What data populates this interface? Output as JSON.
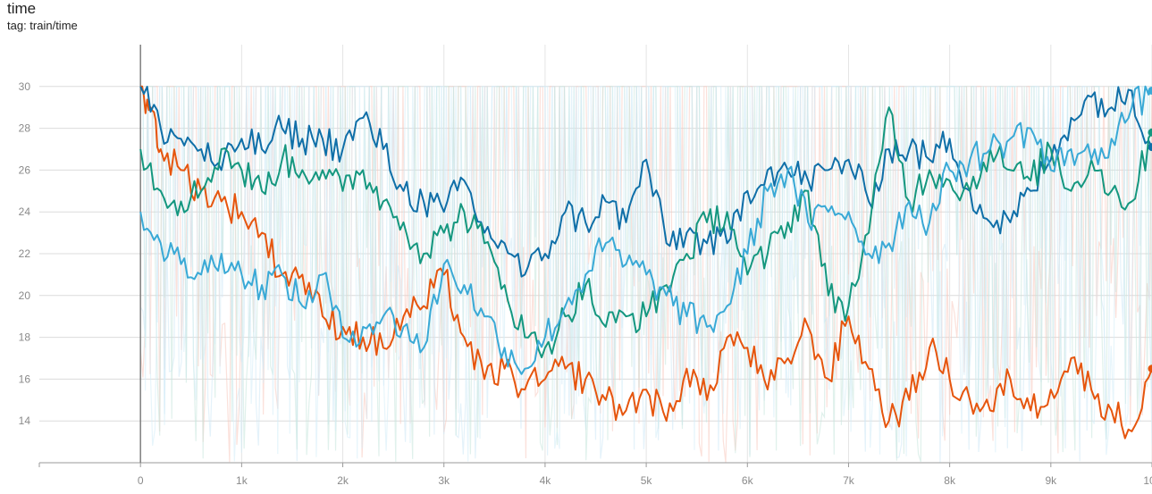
{
  "card": {
    "title": "time",
    "subtitle": "tag: train/time"
  },
  "chart_data": {
    "type": "line",
    "title": "time",
    "subtitle": "tag: train/time",
    "xlim": [
      -1000,
      10000
    ],
    "ylim": [
      12,
      32
    ],
    "x_ticks": [
      0,
      1000,
      2000,
      3000,
      4000,
      5000,
      6000,
      7000,
      8000,
      9000,
      10000
    ],
    "x_tick_labels": [
      "0",
      "1k",
      "2k",
      "3k",
      "4k",
      "5k",
      "6k",
      "7k",
      "8k",
      "9k",
      "10k"
    ],
    "y_ticks": [
      14,
      16,
      18,
      20,
      22,
      24,
      26,
      28,
      30
    ],
    "y_tick_labels": [
      "14",
      "16",
      "18",
      "20",
      "22",
      "24",
      "26",
      "28",
      "30"
    ],
    "grid": true,
    "raw_value_range": [
      12,
      30
    ],
    "series": [
      {
        "color": "#e6550d",
        "raw_color": "#f7c9bd",
        "end_marker": true,
        "x": [
          0,
          100,
          200,
          400,
          600,
          800,
          1000,
          1200,
          1400,
          1600,
          1800,
          2000,
          2200,
          2400,
          2600,
          2800,
          3000,
          3200,
          3400,
          3600,
          3800,
          4000,
          4200,
          4400,
          4600,
          4800,
          5000,
          5200,
          5400,
          5600,
          5800,
          6000,
          6200,
          6400,
          6600,
          6800,
          7000,
          7200,
          7400,
          7600,
          7800,
          8000,
          8200,
          8400,
          8600,
          8800,
          9000,
          9200,
          9400,
          9600,
          9800,
          10000
        ],
        "y": [
          30.0,
          29.0,
          27.0,
          26.0,
          25.0,
          24.5,
          24.0,
          23.0,
          21.0,
          21.0,
          19.0,
          18.5,
          18.0,
          17.5,
          19.0,
          19.5,
          21.0,
          18.0,
          16.0,
          16.5,
          15.5,
          16.0,
          16.5,
          16.0,
          15.0,
          14.5,
          15.5,
          14.0,
          16.5,
          15.0,
          18.0,
          17.5,
          15.5,
          17.0,
          18.5,
          16.0,
          19.0,
          16.5,
          14.0,
          15.0,
          17.5,
          16.0,
          15.0,
          14.5,
          16.0,
          14.5,
          15.5,
          17.0,
          15.5,
          14.5,
          13.5,
          16.5
        ]
      },
      {
        "color": "#0f6fa8",
        "raw_color": "#cde8f5",
        "end_marker": true,
        "x": [
          0,
          200,
          400,
          600,
          800,
          1000,
          1200,
          1400,
          1600,
          1800,
          2000,
          2200,
          2400,
          2600,
          2800,
          3000,
          3200,
          3400,
          3600,
          3800,
          4000,
          4200,
          4400,
          4600,
          4800,
          5000,
          5200,
          5400,
          5600,
          5800,
          6000,
          6200,
          6400,
          6600,
          6800,
          7000,
          7200,
          7400,
          7600,
          7800,
          8000,
          8200,
          8400,
          8600,
          8800,
          9000,
          9200,
          9400,
          9600,
          9800,
          10000
        ],
        "y": [
          30.0,
          28.0,
          27.5,
          27.0,
          26.0,
          27.5,
          27.0,
          28.0,
          27.5,
          27.5,
          27.0,
          28.5,
          27.0,
          25.0,
          24.5,
          24.0,
          25.5,
          23.0,
          22.5,
          21.0,
          22.0,
          24.0,
          23.5,
          24.5,
          23.5,
          26.5,
          22.5,
          23.0,
          22.5,
          22.5,
          25.0,
          26.0,
          26.0,
          25.5,
          26.0,
          26.5,
          24.5,
          27.0,
          27.0,
          26.5,
          27.5,
          25.0,
          23.5,
          23.5,
          25.0,
          26.5,
          28.5,
          29.5,
          29.0,
          29.8,
          27.1
        ]
      },
      {
        "color": "#14977f",
        "raw_color": "#c6e6dd",
        "end_marker": true,
        "x": [
          0,
          200,
          400,
          600,
          800,
          1000,
          1200,
          1400,
          1600,
          1800,
          2000,
          2200,
          2400,
          2600,
          2800,
          3000,
          3200,
          3400,
          3600,
          3800,
          4000,
          4200,
          4400,
          4600,
          4800,
          5000,
          5200,
          5400,
          5600,
          5800,
          6000,
          6200,
          6400,
          6600,
          6800,
          7000,
          7200,
          7400,
          7600,
          7800,
          8000,
          8200,
          8400,
          8600,
          8800,
          9000,
          9200,
          9400,
          9600,
          9800,
          10000
        ],
        "y": [
          27.0,
          25.0,
          24.5,
          25.0,
          27.0,
          26.0,
          25.0,
          26.5,
          26.0,
          26.0,
          25.0,
          26.0,
          24.5,
          23.5,
          22.0,
          23.0,
          24.0,
          22.5,
          20.5,
          18.0,
          17.5,
          19.0,
          20.5,
          18.5,
          19.0,
          19.0,
          20.5,
          22.0,
          23.5,
          24.0,
          21.0,
          22.0,
          23.5,
          25.0,
          20.0,
          19.5,
          23.0,
          29.0,
          24.5,
          26.0,
          25.5,
          25.0,
          27.0,
          26.0,
          25.5,
          27.0,
          25.0,
          26.5,
          25.0,
          24.5,
          27.8
        ]
      },
      {
        "color": "#39a9d6",
        "raw_color": "#d4ecf7",
        "end_marker": true,
        "x": [
          0,
          200,
          400,
          600,
          800,
          1000,
          1200,
          1400,
          1600,
          1800,
          2000,
          2200,
          2400,
          2600,
          2800,
          3000,
          3200,
          3400,
          3600,
          3800,
          4000,
          4200,
          4400,
          4600,
          4800,
          5000,
          5200,
          5400,
          5600,
          5800,
          6000,
          6200,
          6400,
          6600,
          6800,
          7000,
          7200,
          7400,
          7600,
          7800,
          8000,
          8200,
          8400,
          8600,
          8800,
          9000,
          9200,
          9400,
          9600,
          9800,
          10000
        ],
        "y": [
          24.0,
          22.5,
          21.5,
          21.0,
          22.0,
          21.0,
          20.5,
          21.0,
          19.5,
          21.0,
          18.0,
          18.5,
          19.0,
          18.5,
          17.5,
          21.5,
          20.5,
          19.0,
          17.5,
          16.5,
          18.0,
          19.5,
          21.0,
          22.5,
          21.5,
          21.0,
          20.0,
          19.0,
          18.5,
          19.5,
          22.0,
          25.0,
          26.0,
          23.5,
          24.0,
          24.0,
          22.0,
          22.5,
          24.5,
          23.5,
          26.0,
          26.5,
          27.0,
          27.5,
          28.0,
          26.0,
          27.0,
          26.5,
          27.5,
          29.0,
          29.8
        ]
      }
    ]
  }
}
